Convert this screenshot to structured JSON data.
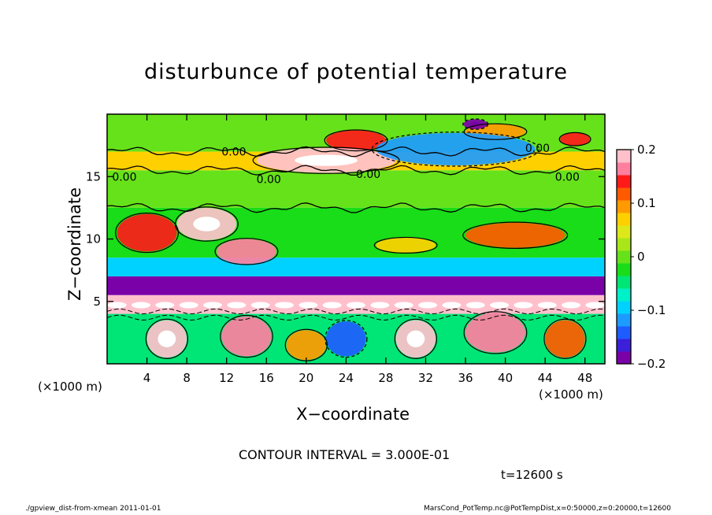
{
  "chart_data": {
    "type": "heatmap",
    "title": "disturbunce of potential temperature",
    "xlabel": "X−coordinate",
    "ylabel": "Z−coordinate",
    "x_unit_left": "(×1000 m)",
    "x_unit_right": "(×1000 m)",
    "xlim": [
      0,
      50
    ],
    "ylim": [
      0,
      20
    ],
    "x_ticks": [
      "4",
      "8",
      "12",
      "16",
      "20",
      "24",
      "28",
      "32",
      "36",
      "40",
      "44",
      "48"
    ],
    "x_tick_values": [
      4,
      8,
      12,
      16,
      20,
      24,
      28,
      32,
      36,
      40,
      44,
      48
    ],
    "y_ticks": [
      "5",
      "10",
      "15"
    ],
    "y_tick_values": [
      5,
      10,
      15
    ],
    "colorbar": {
      "range": [
        -0.2,
        0.2
      ],
      "tick_labels": [
        "0.2",
        "0.1",
        "0",
        "−0.1",
        "−0.2"
      ],
      "tick_values": [
        0.2,
        0.1,
        0,
        -0.1,
        -0.2
      ],
      "colors": [
        "#7a00a8",
        "#3c1fd8",
        "#1e5cff",
        "#1e9bff",
        "#00d2ff",
        "#00f0c8",
        "#00e676",
        "#18dd18",
        "#66e21a",
        "#a8e61a",
        "#dde81a",
        "#ffd000",
        "#ff9a00",
        "#ff5a00",
        "#ff1a1a",
        "#ff7f9f",
        "#ffc0cc"
      ]
    },
    "contour_labels": [
      {
        "text": "0.00",
        "x": 11.5,
        "z": 17.0
      },
      {
        "text": "0.00",
        "x": 0.5,
        "z": 15.0
      },
      {
        "text": "0.00",
        "x": 25,
        "z": 15.2
      },
      {
        "text": "0.00",
        "x": 42,
        "z": 17.3
      },
      {
        "text": "0.00",
        "x": 45,
        "z": 15.0
      },
      {
        "text": "0.00",
        "x": 15,
        "z": 14.8
      }
    ],
    "bands": [
      {
        "z0": 17.0,
        "z1": 20.0,
        "value": 0.0
      },
      {
        "z0": 15.5,
        "z1": 17.0,
        "value": 0.06
      },
      {
        "z0": 12.5,
        "z1": 15.5,
        "value": 0.0
      },
      {
        "z0": 8.5,
        "z1": 12.5,
        "value": -0.03
      },
      {
        "z0": 7.0,
        "z1": 8.5,
        "value": -0.1
      },
      {
        "z0": 5.5,
        "z1": 7.0,
        "value": -0.18
      },
      {
        "z0": 4.0,
        "z1": 5.5,
        "value": 0.2
      },
      {
        "z0": 0.0,
        "z1": 4.0,
        "value": -0.05
      }
    ],
    "blobs": [
      {
        "x": 25,
        "z": 17.9,
        "rx": 3,
        "rz": 0.8,
        "value": 0.14
      },
      {
        "x": 22,
        "z": 16.3,
        "rx": 7,
        "rz": 1.0,
        "value": 0.2
      },
      {
        "x": 39,
        "z": 18.6,
        "rx": 3,
        "rz": 0.6,
        "value": 0.1
      },
      {
        "x": 47,
        "z": 18.0,
        "rx": 1.5,
        "rz": 0.5,
        "value": 0.15
      },
      {
        "x": 35,
        "z": 17.2,
        "rx": 8,
        "rz": 1.3,
        "value": -0.12
      },
      {
        "x": 37,
        "z": 19.2,
        "rx": 1.2,
        "rz": 0.4,
        "value": -0.2
      },
      {
        "x": 4,
        "z": 10.5,
        "rx": 3,
        "rz": 1.5,
        "value": 0.15
      },
      {
        "x": 10,
        "z": 11.2,
        "rx": 3,
        "rz": 1.3,
        "value": 0.18
      },
      {
        "x": 14,
        "z": 9.0,
        "rx": 3,
        "rz": 1.0,
        "value": 0.16
      },
      {
        "x": 41,
        "z": 10.3,
        "rx": 5,
        "rz": 1.0,
        "value": 0.12
      },
      {
        "x": 30,
        "z": 9.5,
        "rx": 3,
        "rz": 0.6,
        "value": 0.08
      },
      {
        "x": 6,
        "z": 2.0,
        "rx": 2,
        "rz": 1.5,
        "value": 0.18
      },
      {
        "x": 14,
        "z": 2.2,
        "rx": 2.5,
        "rz": 1.6,
        "value": 0.16
      },
      {
        "x": 31,
        "z": 2.0,
        "rx": 2,
        "rz": 1.5,
        "value": 0.2
      },
      {
        "x": 39,
        "z": 2.5,
        "rx": 3,
        "rz": 1.6,
        "value": 0.17
      },
      {
        "x": 46,
        "z": 2.0,
        "rx": 2,
        "rz": 1.5,
        "value": 0.12
      },
      {
        "x": 24,
        "z": 2.0,
        "rx": 2,
        "rz": 1.4,
        "value": -0.15
      },
      {
        "x": 20,
        "z": 1.5,
        "rx": 2,
        "rz": 1.2,
        "value": 0.1
      }
    ]
  },
  "contour_interval": "CONTOUR INTERVAL = 3.000E-01",
  "time_label": "t=12600 s",
  "footer_left": "./gpview_dist-from-xmean  2011-01-01",
  "footer_right": "MarsCond_PotTemp.nc@PotTempDist,x=0:50000,z=0:20000,t=12600"
}
